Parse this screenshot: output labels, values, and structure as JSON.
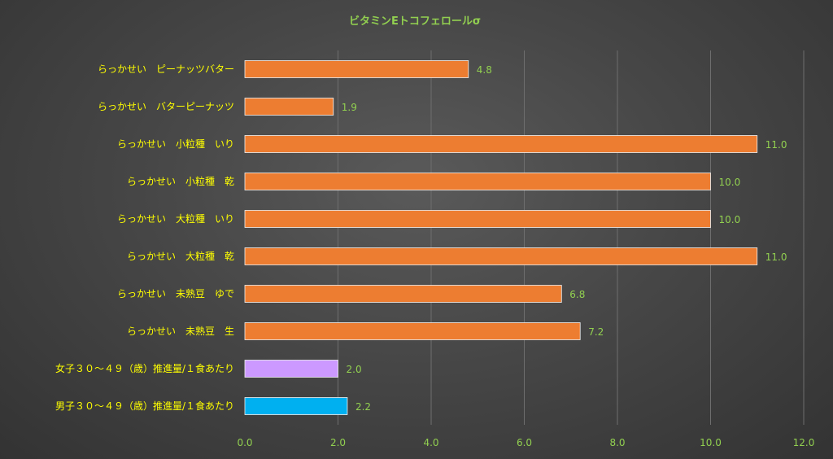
{
  "chart_data": {
    "type": "bar",
    "orientation": "horizontal",
    "title": "ビタミンEトコフェロールσ",
    "categories": [
      "らっかせい　ピーナッツバター",
      "らっかせい　バターピーナッツ",
      "らっかせい　小粒種　いり",
      "らっかせい　小粒種　乾",
      "らっかせい　大粒種　いり",
      "らっかせい　大粒種　乾",
      "らっかせい　未熟豆　ゆで",
      "らっかせい　未熟豆　生",
      "女子３０～４９（歳）推進量/１食あたり",
      "男子３０～４９（歳）推進量/１食あたり"
    ],
    "values": [
      4.8,
      1.9,
      11.0,
      10.0,
      10.0,
      11.0,
      6.8,
      7.2,
      2.0,
      2.2
    ],
    "value_labels": [
      "4.8",
      "1.9",
      "11.0",
      "10.0",
      "10.0",
      "11.0",
      "6.8",
      "7.2",
      "2.0",
      "2.2"
    ],
    "bar_colors": [
      "#ed7d31",
      "#ed7d31",
      "#ed7d31",
      "#ed7d31",
      "#ed7d31",
      "#ed7d31",
      "#ed7d31",
      "#ed7d31",
      "#cc99ff",
      "#00b0f0"
    ],
    "xlim": [
      0,
      12
    ],
    "x_ticks": [
      "0.0",
      "2.0",
      "4.0",
      "6.0",
      "8.0",
      "10.0",
      "12.0"
    ],
    "grid": true,
    "legend": false
  }
}
